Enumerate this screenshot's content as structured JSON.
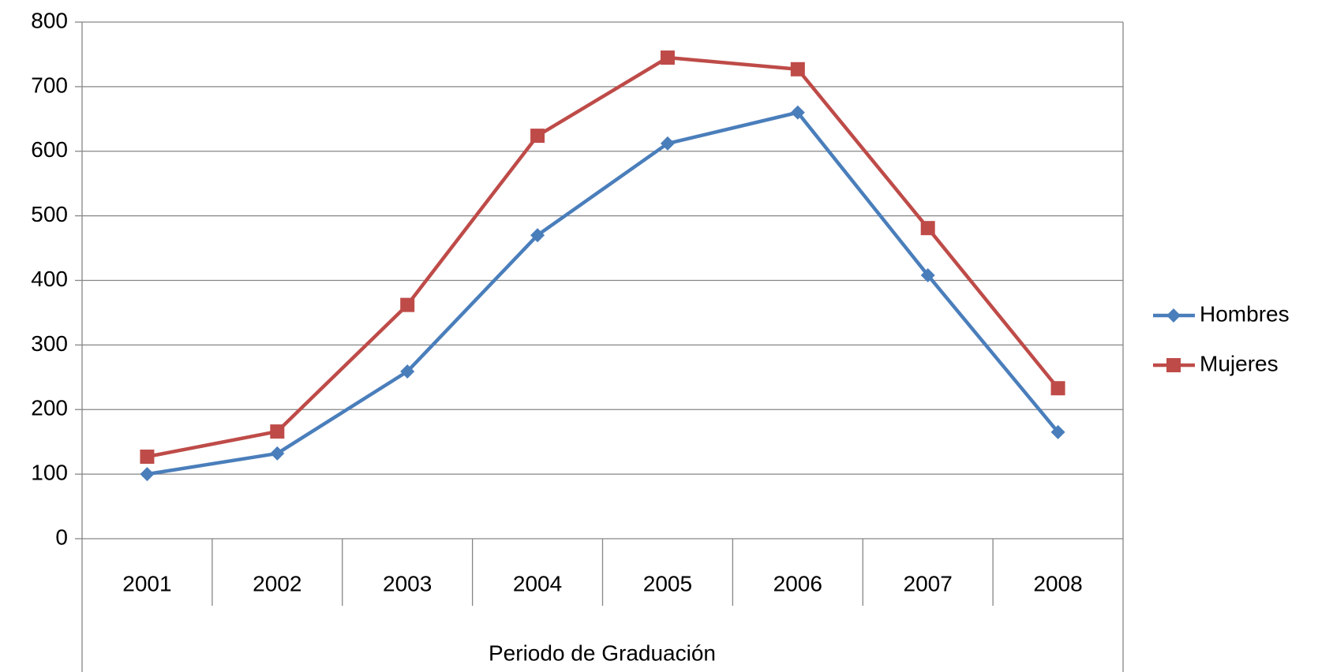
{
  "chart_data": {
    "type": "line",
    "x_label": "Periodo de Graduación",
    "categories": [
      "2001",
      "2002",
      "2003",
      "2004",
      "2005",
      "2006",
      "2007",
      "2008"
    ],
    "series": [
      {
        "name": "Hombres",
        "color": "#4a7ebb",
        "marker": "diamond",
        "values": [
          100,
          132,
          259,
          470,
          612,
          660,
          408,
          165
        ]
      },
      {
        "name": "Mujeres",
        "color": "#be4b48",
        "marker": "square",
        "values": [
          127,
          166,
          362,
          624,
          745,
          727,
          481,
          233
        ]
      }
    ],
    "ylim": [
      0,
      800
    ],
    "yticks": [
      0,
      100,
      200,
      300,
      400,
      500,
      600,
      700,
      800
    ],
    "grid": true,
    "legend": "right"
  }
}
